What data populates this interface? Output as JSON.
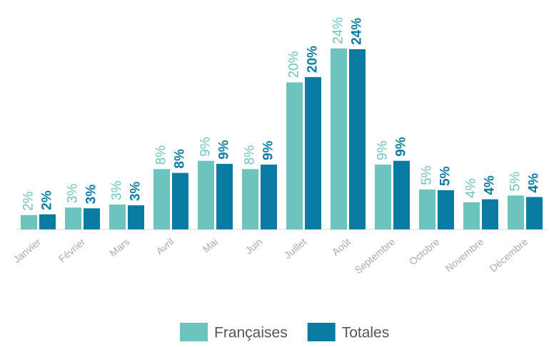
{
  "chart_data": {
    "type": "bar",
    "categories": [
      "Janvier",
      "Février",
      "Mars",
      "Avril",
      "Mai",
      "Juin",
      "Juillet",
      "Août",
      "Septembre",
      "Octobre",
      "Novembre",
      "Décembre"
    ],
    "series": [
      {
        "name": "Françaises",
        "color": "#6dc4be",
        "values": [
          1.9,
          2.9,
          3.3,
          8.0,
          9.1,
          8.0,
          19.5,
          24.0,
          8.6,
          5.3,
          3.6,
          4.5
        ],
        "value_labels": [
          "2%",
          "3%",
          "3%",
          "8%",
          "9%",
          "8%",
          "20%",
          "24%",
          "9%",
          "5%",
          "4%",
          "5%"
        ]
      },
      {
        "name": "Totales",
        "color": "#0a7ca4",
        "values": [
          2.0,
          2.8,
          3.2,
          7.5,
          8.7,
          8.6,
          20.2,
          23.9,
          9.1,
          5.2,
          4.0,
          4.3
        ],
        "value_labels": [
          "2%",
          "3%",
          "3%",
          "8%",
          "9%",
          "9%",
          "20%",
          "24%",
          "9%",
          "5%",
          "4%",
          "4%"
        ]
      }
    ],
    "legend": "bottom"
  }
}
